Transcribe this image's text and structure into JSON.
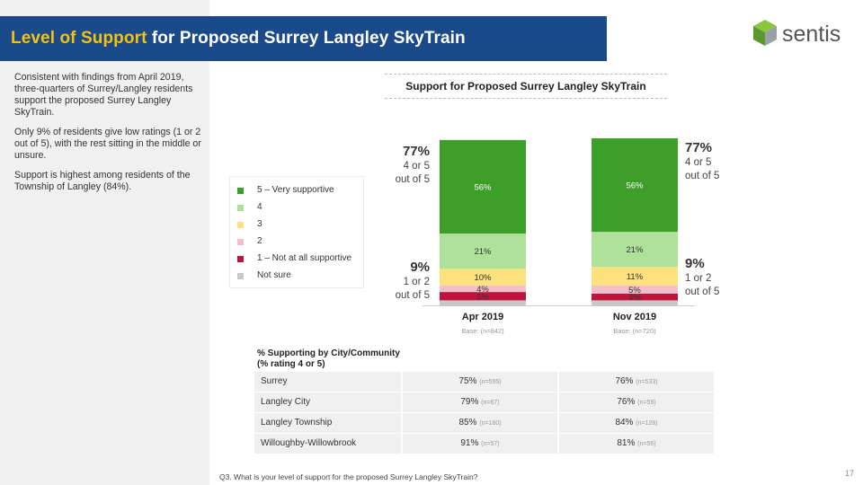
{
  "slide": {
    "title_highlight": "Level of Support",
    "title_rest": " for Proposed Surrey Langley SkyTrain",
    "logo_text": "sentis",
    "summary": [
      "Consistent with findings from April 2019, three-quarters of Surrey/Langley residents support the proposed Surrey Langley SkyTrain.",
      "Only 9% of residents give low ratings (1 or 2 out of 5), with the rest sitting in the middle or unsure.",
      "Support is highest among residents of the Township of Langley (84%)."
    ],
    "footnote": "Q3. What is your level of support for the proposed Surrey Langley SkyTrain?",
    "page_number": "17"
  },
  "summary_labels": {
    "left_top_pct": "77%",
    "left_top_sub1": "4 or 5",
    "left_top_sub2": "out of 5",
    "left_bot_pct": "9%",
    "left_bot_sub1": "1 or 2",
    "left_bot_sub2": "out of 5",
    "right_top_pct": "77%",
    "right_top_sub1": "4 or 5",
    "right_top_sub2": "out of 5",
    "right_bot_pct": "9%",
    "right_bot_sub1": "1 or 2",
    "right_bot_sub2": "out of 5"
  },
  "chart_data": {
    "type": "bar",
    "stacked": true,
    "title": "Support for Proposed Surrey Langley SkyTrain",
    "categories": [
      "Apr 2019",
      "Nov 2019"
    ],
    "bases": [
      "Base: (n=842)",
      "Base: (n=720)"
    ],
    "series": [
      {
        "name": "Not sure",
        "color": "#c8c8c8",
        "values": [
          3,
          3
        ],
        "labels": [
          "",
          ""
        ]
      },
      {
        "name": "1 – Not at all supportive",
        "color": "#c0143c",
        "values": [
          5,
          4
        ],
        "labels": [
          "5%",
          "4%"
        ]
      },
      {
        "name": "2",
        "color": "#f4bfc9",
        "values": [
          4,
          5
        ],
        "labels": [
          "4%",
          "5%"
        ]
      },
      {
        "name": "3",
        "color": "#fce17e",
        "values": [
          10,
          11
        ],
        "labels": [
          "10%",
          "11%"
        ]
      },
      {
        "name": "4",
        "color": "#aee29a",
        "values": [
          21,
          21
        ],
        "labels": [
          "21%",
          "21%"
        ]
      },
      {
        "name": "5 – Very supportive",
        "color": "#3e9e2a",
        "values": [
          56,
          56
        ],
        "labels": [
          "56%",
          "56%"
        ]
      }
    ],
    "legend_order": [
      "5 – Very supportive",
      "4",
      "3",
      "2",
      "1 – Not at all supportive",
      "Not sure"
    ],
    "legend_colors": [
      "#3e9e2a",
      "#aee29a",
      "#fce17e",
      "#f4bfc9",
      "#c0143c",
      "#c8c8c8"
    ],
    "ylim": [
      0,
      100
    ]
  },
  "table": {
    "heading_line1": "% Supporting by City/Community",
    "heading_line2": "(% rating 4 or 5)",
    "rows": [
      {
        "name": "Surrey",
        "apr": "75%",
        "apr_n": "(n=595)",
        "nov": "76%",
        "nov_n": "(n=533)"
      },
      {
        "name": "Langley City",
        "apr": "79%",
        "apr_n": "(n=67)",
        "nov": "76%",
        "nov_n": "(n=59)"
      },
      {
        "name": "Langley Township",
        "apr": "85%",
        "apr_n": "(n=180)",
        "nov": "84%",
        "nov_n": "(n=128)"
      },
      {
        "name": "Willoughby-Willowbrook",
        "apr": "91%",
        "apr_n": "(n=57)",
        "nov": "81%",
        "nov_n": "(n=56)"
      }
    ]
  },
  "colors": {
    "title_bar": "#1a4a8a",
    "title_highlight": "#f3c313"
  }
}
